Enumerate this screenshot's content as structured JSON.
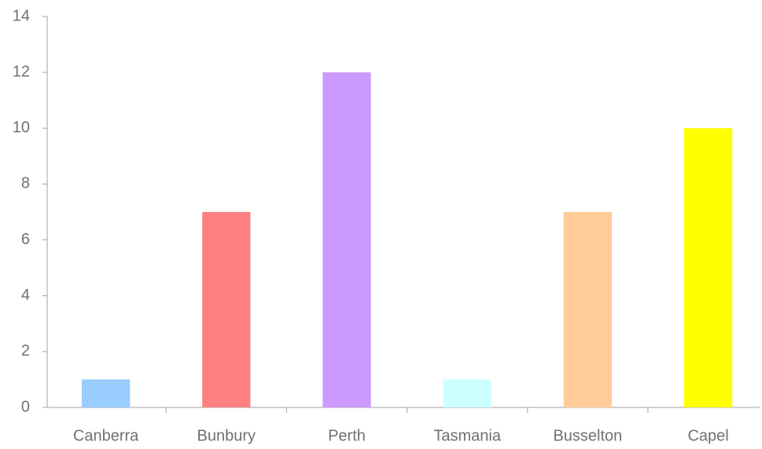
{
  "chart_data": {
    "type": "bar",
    "categories": [
      "Canberra",
      "Bunbury",
      "Perth",
      "Tasmania",
      "Busselton",
      "Capel"
    ],
    "values": [
      1,
      7,
      12,
      1,
      7,
      10
    ],
    "colors": [
      "#99ccff",
      "#ff8080",
      "#cc99ff",
      "#ccffff",
      "#ffcc99",
      "#ffff00"
    ],
    "ylim": [
      0,
      14
    ],
    "yticks": [
      0,
      2,
      4,
      6,
      8,
      10,
      12,
      14
    ],
    "grid": false
  }
}
